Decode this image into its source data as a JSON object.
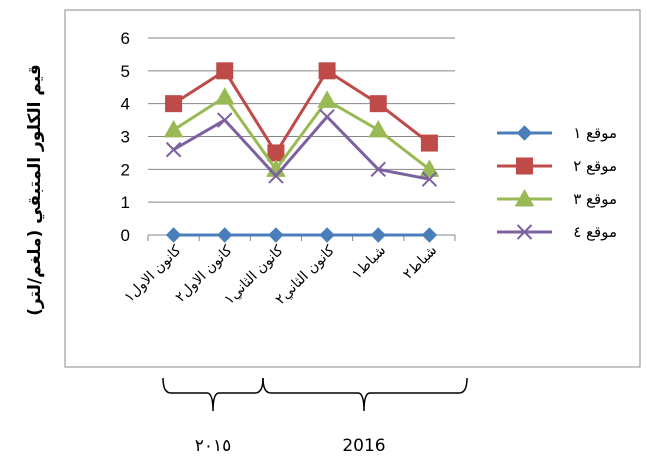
{
  "chart_data": {
    "type": "line",
    "title": "",
    "ylabel": "قيم الكلور المتبقي (ملغم/لتر)",
    "xlabel": "",
    "ylim": [
      0,
      6
    ],
    "yticks": [
      "0",
      "1",
      "2",
      "3",
      "4",
      "5",
      "6"
    ],
    "categories": [
      "كانون الاول١",
      "كانون الاول٢",
      "كانون الثاني١",
      "كانون الثاني٢",
      "شباط١",
      "شباط٢"
    ],
    "grid": "horizontal",
    "legend_position": "right",
    "series": [
      {
        "name": "موقع ١",
        "values": [
          0,
          0,
          0,
          0,
          0,
          0
        ],
        "color": "#4A7EBB",
        "marker": "diamond"
      },
      {
        "name": "موقع ٢",
        "values": [
          4,
          5,
          2.5,
          5,
          4,
          2.8
        ],
        "color": "#BE4B48",
        "marker": "square"
      },
      {
        "name": "موقع ٣",
        "values": [
          3.2,
          4.2,
          2,
          4.1,
          3.2,
          2
        ],
        "color": "#98B954",
        "marker": "triangle"
      },
      {
        "name": "موقع ٤",
        "values": [
          2.6,
          3.5,
          1.8,
          3.6,
          2,
          1.7
        ],
        "color": "#7D60A0",
        "marker": "x"
      }
    ]
  },
  "year_brackets": [
    {
      "label": "٢٠١٥",
      "categories": [
        "كانون الاول١",
        "كانون الاول٢"
      ]
    },
    {
      "label": "2016",
      "categories": [
        "كانون الثاني١",
        "كانون الثاني٢",
        "شباط١",
        "شباط٢"
      ]
    }
  ]
}
